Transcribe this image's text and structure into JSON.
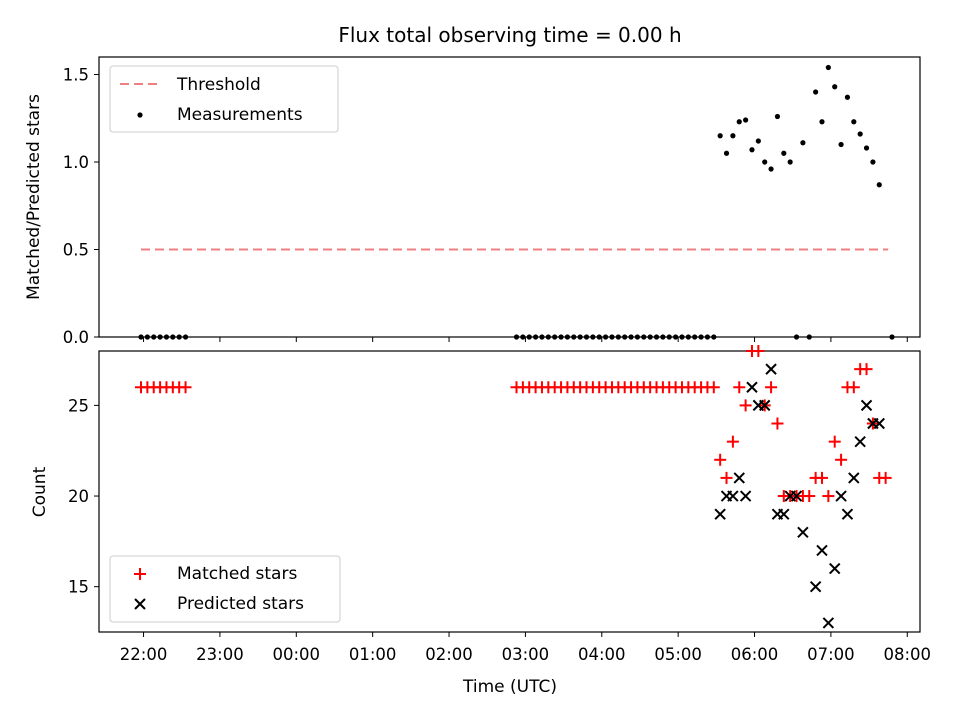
{
  "figure_title": "Flux total observing time = 0.00 h",
  "colors": {
    "threshold": "#f08080",
    "measurements": "#000000",
    "matched": "#ff0000",
    "predicted": "#000000"
  },
  "chart_data": [
    {
      "type": "scatter",
      "panel": "top",
      "title": "Flux total observing time = 0.00 h",
      "xlabel": "",
      "ylabel": "Matched/Predicted stars",
      "x_unit": "hours (UTC), 22:00 = 22, 00:00 = 24",
      "xlim": [
        "21:25",
        "08:10"
      ],
      "ylim": [
        0,
        1.6
      ],
      "yticks": [
        "0.0",
        "0.5",
        "1.0",
        "1.5"
      ],
      "legend": {
        "position": "top-left",
        "entries": [
          "Threshold",
          "Measurements"
        ]
      },
      "series": [
        {
          "name": "Threshold",
          "style": "dashed-line",
          "color": "#f08080",
          "x": [
            "21:58",
            "07:45"
          ],
          "y": [
            0.5,
            0.5
          ]
        },
        {
          "name": "Measurements",
          "style": "dot",
          "color": "#000000",
          "x": [
            "21:58",
            "22:03",
            "22:08",
            "22:13",
            "22:18",
            "22:23",
            "22:28",
            "22:33",
            "02:53",
            "02:58",
            "03:03",
            "03:08",
            "03:13",
            "03:18",
            "03:23",
            "03:28",
            "03:33",
            "03:38",
            "03:43",
            "03:48",
            "03:53",
            "03:58",
            "04:03",
            "04:08",
            "04:13",
            "04:18",
            "04:23",
            "04:28",
            "04:33",
            "04:38",
            "04:43",
            "04:48",
            "04:53",
            "04:58",
            "05:03",
            "05:08",
            "05:13",
            "05:18",
            "05:23",
            "05:28",
            "05:33",
            "05:38",
            "05:43",
            "05:48",
            "05:53",
            "05:58",
            "06:03",
            "06:08",
            "06:13",
            "06:18",
            "06:23",
            "06:28",
            "06:33",
            "06:38",
            "06:48",
            "06:53",
            "06:58",
            "07:03",
            "07:08",
            "07:13",
            "07:18",
            "07:23",
            "07:28",
            "07:33",
            "07:38",
            "06:43",
            "07:48"
          ],
          "y": [
            0,
            0,
            0,
            0,
            0,
            0,
            0,
            0,
            0,
            0,
            0,
            0,
            0,
            0,
            0,
            0,
            0,
            0,
            0,
            0,
            0,
            0,
            0,
            0,
            0,
            0,
            0,
            0,
            0,
            0,
            0,
            0,
            0,
            0,
            0,
            0,
            0,
            0,
            0,
            0,
            1.15,
            1.05,
            1.15,
            1.23,
            1.24,
            1.07,
            1.12,
            1.0,
            0.96,
            1.26,
            1.05,
            1.0,
            0,
            1.11,
            1.4,
            1.23,
            1.54,
            1.43,
            1.1,
            1.37,
            1.23,
            1.16,
            1.08,
            1.0,
            0.87,
            0,
            0
          ]
        }
      ]
    },
    {
      "type": "scatter",
      "panel": "bottom",
      "xlabel": "Time (UTC)",
      "ylabel": "Count",
      "xticks": [
        "22:00",
        "23:00",
        "00:00",
        "01:00",
        "02:00",
        "03:00",
        "04:00",
        "05:00",
        "06:00",
        "07:00",
        "08:00"
      ],
      "ylim": [
        12.5,
        28
      ],
      "yticks": [
        "15",
        "20",
        "25"
      ],
      "legend": {
        "position": "bottom-left",
        "entries": [
          "Matched stars",
          "Predicted stars"
        ]
      },
      "series": [
        {
          "name": "Matched stars",
          "marker": "+",
          "color": "#ff0000",
          "x": [
            "21:58",
            "22:03",
            "22:08",
            "22:13",
            "22:18",
            "22:23",
            "22:28",
            "22:33",
            "02:53",
            "02:58",
            "03:03",
            "03:08",
            "03:13",
            "03:18",
            "03:23",
            "03:28",
            "03:33",
            "03:38",
            "03:43",
            "03:48",
            "03:53",
            "03:58",
            "04:03",
            "04:08",
            "04:13",
            "04:18",
            "04:23",
            "04:28",
            "04:33",
            "04:38",
            "04:43",
            "04:48",
            "04:53",
            "04:58",
            "05:03",
            "05:08",
            "05:13",
            "05:18",
            "05:23",
            "05:28",
            "05:33",
            "05:38",
            "05:43",
            "05:48",
            "05:53",
            "05:58",
            "06:03",
            "06:08",
            "06:13",
            "06:18",
            "06:23",
            "06:28",
            "06:33",
            "06:38",
            "06:43",
            "06:48",
            "06:53",
            "06:58",
            "07:03",
            "07:08",
            "07:13",
            "07:18",
            "07:23",
            "07:28",
            "07:33",
            "07:38",
            "07:43"
          ],
          "y": [
            26,
            26,
            26,
            26,
            26,
            26,
            26,
            26,
            26,
            26,
            26,
            26,
            26,
            26,
            26,
            26,
            26,
            26,
            26,
            26,
            26,
            26,
            26,
            26,
            26,
            26,
            26,
            26,
            26,
            26,
            26,
            26,
            26,
            26,
            26,
            26,
            26,
            26,
            26,
            26,
            22,
            21,
            23,
            26,
            25,
            28,
            28,
            25,
            26,
            24,
            20,
            20,
            20,
            20,
            20,
            21,
            21,
            20,
            23,
            22,
            26,
            26,
            27,
            27,
            24,
            21,
            21
          ]
        },
        {
          "name": "Predicted stars",
          "marker": "x",
          "color": "#000000",
          "x": [
            "05:33",
            "05:38",
            "05:43",
            "05:48",
            "05:53",
            "05:58",
            "06:03",
            "06:08",
            "06:13",
            "06:18",
            "06:23",
            "06:28",
            "06:33",
            "06:38",
            "06:48",
            "06:53",
            "06:58",
            "07:03",
            "07:08",
            "07:13",
            "07:18",
            "07:23",
            "07:28",
            "07:33",
            "07:38"
          ],
          "y": [
            19,
            20,
            20,
            21,
            20,
            26,
            25,
            25,
            27,
            19,
            19,
            20,
            20,
            18,
            15,
            17,
            13,
            16,
            20,
            19,
            21,
            23,
            25,
            24,
            24
          ]
        }
      ]
    }
  ]
}
